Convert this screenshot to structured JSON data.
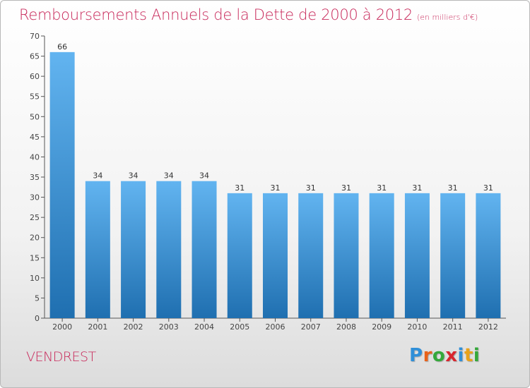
{
  "header": {
    "title": "Remboursements Annuels de la Dette de 2000 à 2012",
    "subtitle": "(en milliers d'€)"
  },
  "footer": {
    "commune": "VENDREST",
    "logo": [
      "P",
      "r",
      "o",
      "x",
      "i",
      "t",
      "i"
    ],
    "logo_colors": [
      "#2f8fd8",
      "#e8621a",
      "#34a83a",
      "#d8262e",
      "#2f8fd8",
      "#e8a21a",
      "#34a83a"
    ]
  },
  "colors": {
    "bar_light": "#62b4f0",
    "bar_dark": "#1f6fb0",
    "accent": "#c8285a"
  },
  "chart_data": {
    "type": "bar",
    "title": "Remboursements Annuels de la Dette de 2000 à 2012",
    "subtitle": "(en milliers d'€)",
    "categories": [
      "2000",
      "2001",
      "2002",
      "2003",
      "2004",
      "2005",
      "2006",
      "2007",
      "2008",
      "2009",
      "2010",
      "2011",
      "2012"
    ],
    "values": [
      66,
      34,
      34,
      34,
      34,
      31,
      31,
      31,
      31,
      31,
      31,
      31,
      31
    ],
    "ylim": [
      0,
      70
    ],
    "yticks": [
      0,
      5,
      10,
      15,
      20,
      25,
      30,
      35,
      40,
      45,
      50,
      55,
      60,
      65,
      70
    ],
    "grid": false,
    "legend": "none"
  }
}
